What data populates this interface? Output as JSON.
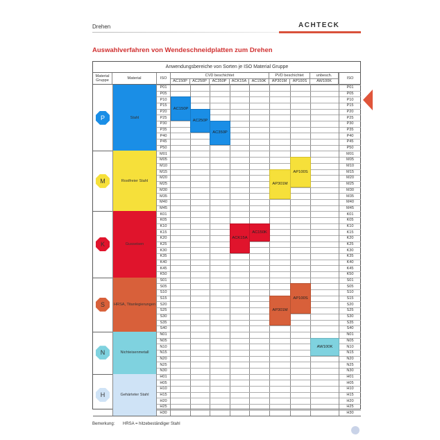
{
  "header": {
    "section": "Drehen",
    "brand": "ACHTECK"
  },
  "title": "Auswahlverfahren von Wendeschneidplatten zum Drehen",
  "table": {
    "caption": "Anwendungsbereiche von Sorten je ISO Material Gruppe",
    "col_group": "Material Gruppe",
    "col_material": "Material",
    "col_iso": "ISO",
    "groups_header": [
      {
        "label": "CVD beschichtet",
        "span": 5
      },
      {
        "label": "PVD  beschichtet",
        "span": 2
      },
      {
        "label": "unbesch.",
        "span": 1
      }
    ],
    "grades": [
      "AC150P",
      "AC250P",
      "AC350P",
      "ACK15A",
      "AC150K",
      "AP301M",
      "AP100S",
      "AW100K"
    ],
    "groups": [
      {
        "letter": "P",
        "material": "Stahl",
        "color": "#1a8ee6",
        "codes": [
          "P01",
          "P05",
          "P10",
          "P15",
          "P20",
          "P25",
          "P30",
          "P35",
          "P40",
          "P45",
          "P50"
        ],
        "blocks": [
          {
            "grade": "AC150P",
            "from": "P10",
            "to": "P25"
          },
          {
            "grade": "AC250P",
            "from": "P20",
            "to": "P35"
          },
          {
            "grade": "AC350P",
            "from": "P30",
            "to": "P45"
          }
        ]
      },
      {
        "letter": "M",
        "material": "Rostfreier Stahl",
        "color": "#f6e03a",
        "codes": [
          "M01",
          "M05",
          "M10",
          "M15",
          "M20",
          "M25",
          "M30",
          "M35",
          "M40",
          "M45"
        ],
        "blocks": [
          {
            "grade": "AP301M",
            "from": "M15",
            "to": "M35"
          },
          {
            "grade": "AP100S",
            "from": "M05",
            "to": "M25"
          }
        ]
      },
      {
        "letter": "K",
        "material": "Gusseisen",
        "color": "#e0142c",
        "codes": [
          "K01",
          "K05",
          "K10",
          "K15",
          "K20",
          "K25",
          "K30",
          "K35",
          "K40",
          "K45",
          "K50"
        ],
        "blocks": [
          {
            "grade": "ACK15A",
            "from": "K10",
            "to": "K30"
          },
          {
            "grade": "AC150K",
            "from": "K10",
            "to": "K20"
          }
        ]
      },
      {
        "letter": "S",
        "material": "HRSA, Titanlegierungen",
        "color": "#d8603a",
        "codes": [
          "S01",
          "S05",
          "S10",
          "S15",
          "S20",
          "S25",
          "S30",
          "S35",
          "S40"
        ],
        "blocks": [
          {
            "grade": "AP301M",
            "from": "S15",
            "to": "S35"
          },
          {
            "grade": "AP100S",
            "from": "S05",
            "to": "S25"
          }
        ]
      },
      {
        "letter": "N",
        "material": "Nichteisenmetall",
        "color": "#7fd2df",
        "codes": [
          "N01",
          "N05",
          "N10",
          "N15",
          "N20",
          "N25",
          "N30"
        ],
        "blocks": [
          {
            "grade": "AW100K",
            "from": "N05",
            "to": "N15"
          }
        ]
      },
      {
        "letter": "H",
        "material": "Gehärteter Stahl",
        "color": "#cfe3f6",
        "codes": [
          "H01",
          "H05",
          "H10",
          "H15",
          "H20",
          "H25",
          "H30"
        ],
        "blocks": []
      }
    ]
  },
  "remark": {
    "label": "Bemerkung:",
    "text": "HRSA = hitzebeständiger Stahl"
  }
}
